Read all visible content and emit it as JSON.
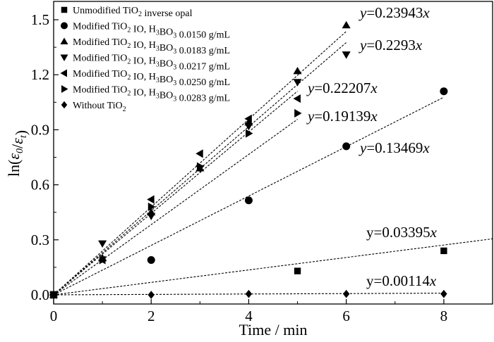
{
  "chart_data": {
    "type": "scatter",
    "xlabel": "Time / min",
    "ylabel": "ln(ε0/εt)",
    "xlim": [
      0,
      9
    ],
    "ylim": [
      -0.05,
      1.6
    ],
    "x_ticks": [
      "0",
      "2",
      "4",
      "6",
      "8"
    ],
    "y_ticks": [
      "0.0",
      "0.3",
      "0.6",
      "0.9",
      "1.2",
      "1.5"
    ],
    "series": [
      {
        "name": "Unmodified TiO2 inverse opal",
        "marker": "square",
        "x": [
          0,
          5,
          8
        ],
        "y": [
          0.0,
          0.13,
          0.24
        ],
        "fit_slope": 0.03395,
        "equation": "y=0.03395x"
      },
      {
        "name": "Modified TiO2 IO, H3BO3 0.0150 g/mL",
        "marker": "circle",
        "x": [
          0,
          2,
          4,
          6,
          8
        ],
        "y": [
          0.0,
          0.19,
          0.515,
          0.81,
          1.11
        ],
        "fit_slope": 0.13469,
        "equation": "y=0.13469x"
      },
      {
        "name": "Modified TiO2 IO, H3BO3 0.0183 g/mL",
        "marker": "triangle-up",
        "x": [
          0,
          1,
          2,
          3,
          4,
          5,
          6
        ],
        "y": [
          0.0,
          0.2,
          0.45,
          0.69,
          0.94,
          1.22,
          1.47
        ],
        "fit_slope": 0.23943,
        "equation": "y=0.23943x"
      },
      {
        "name": "Modified TiO2 IO, H3BO3 0.0217 g/mL",
        "marker": "triangle-down",
        "x": [
          0,
          1,
          2,
          3,
          4,
          5,
          6
        ],
        "y": [
          0.0,
          0.28,
          0.43,
          0.69,
          0.92,
          1.16,
          1.31
        ],
        "fit_slope": 0.2293,
        "equation": "y=0.2293x"
      },
      {
        "name": "Modified TiO2 IO, H3BO3 0.0250 g/mL",
        "marker": "triangle-left",
        "x": [
          0,
          1,
          2,
          3,
          4,
          5
        ],
        "y": [
          0.0,
          0.19,
          0.52,
          0.77,
          0.96,
          1.07
        ],
        "fit_slope": 0.22207,
        "equation": "y=0.22207x"
      },
      {
        "name": "Modified TiO2 IO, H3BO3 0.0283 g/mL",
        "marker": "triangle-right",
        "x": [
          0,
          1,
          2,
          3,
          4,
          5
        ],
        "y": [
          0.0,
          0.19,
          0.48,
          0.7,
          0.88,
          0.99
        ],
        "fit_slope": 0.19139,
        "equation": "y=0.19139x"
      },
      {
        "name": "Without TiO2",
        "marker": "diamond",
        "x": [
          0,
          2,
          4,
          6,
          8
        ],
        "y": [
          0.0,
          0.0,
          0.005,
          0.005,
          0.005
        ],
        "fit_slope": 0.00114,
        "equation": "y=0.00114x"
      }
    ],
    "legend_entries": [
      {
        "pre": "Unmodified TiO",
        "sub": "2",
        "post": " inverse opal",
        "sub2": "",
        "post2": ""
      },
      {
        "pre": "Modified TiO",
        "sub": "2",
        "post": " IO, H",
        "sub2": "3",
        "post2": "BO",
        "sub3": "3",
        "post3": " 0.0150 g/mL"
      },
      {
        "pre": "Modified TiO",
        "sub": "2",
        "post": " IO, H",
        "sub2": "3",
        "post2": "BO",
        "sub3": "3",
        "post3": " 0.0183 g/mL"
      },
      {
        "pre": "Modified TiO",
        "sub": "2",
        "post": " IO, H",
        "sub2": "3",
        "post2": "BO",
        "sub3": "3",
        "post3": " 0.0217 g/mL"
      },
      {
        "pre": "Modified TiO",
        "sub": "2",
        "post": " IO, H",
        "sub2": "3",
        "post2": "BO",
        "sub3": "3",
        "post3": " 0.0250 g/mL"
      },
      {
        "pre": "Modified TiO",
        "sub": "2",
        "post": " IO, H",
        "sub2": "3",
        "post2": "BO",
        "sub3": "3",
        "post3": " 0.0283 g/mL"
      },
      {
        "pre": "Without TiO",
        "sub": "2",
        "post": "",
        "sub2": "",
        "post2": ""
      }
    ],
    "legend_position": "top-left",
    "grid": false,
    "fit_line_style": "dashed",
    "color": "#000000"
  }
}
